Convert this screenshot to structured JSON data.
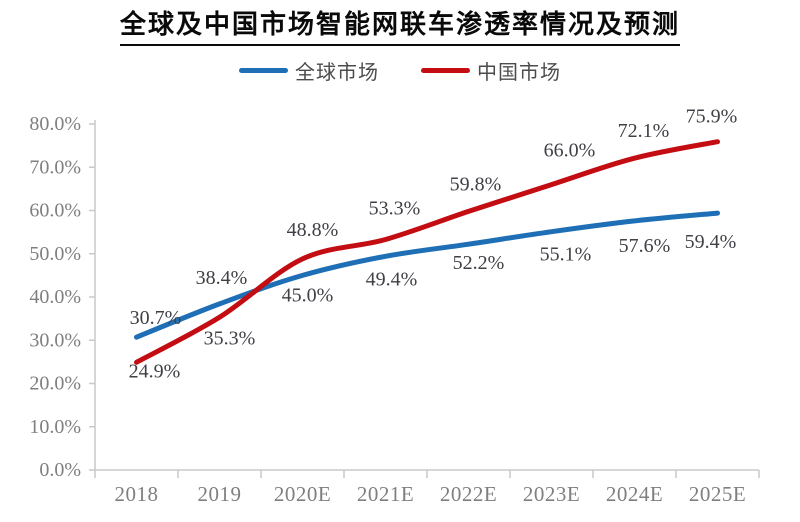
{
  "chart_data": {
    "type": "line",
    "title": "全球及中国市场智能网联车渗透率情况及预测",
    "categories": [
      "2018",
      "2019",
      "2020E",
      "2021E",
      "2022E",
      "2023E",
      "2024E",
      "2025E"
    ],
    "series": [
      {
        "name": "全球市场",
        "color": "#1E6FB5",
        "values": [
          30.7,
          38.4,
          45.0,
          49.4,
          52.2,
          55.1,
          57.6,
          59.4
        ],
        "labels": [
          "30.7%",
          "38.4%",
          "45.0%",
          "49.4%",
          "52.2%",
          "55.1%",
          "57.6%",
          "59.4%"
        ],
        "label_side": [
          "above",
          "above",
          "below",
          "below",
          "below",
          "below",
          "below",
          "below"
        ]
      },
      {
        "name": "中国市场",
        "color": "#C30D12",
        "values": [
          24.9,
          35.3,
          48.8,
          53.3,
          59.8,
          66.0,
          72.1,
          75.9
        ],
        "labels": [
          "24.9%",
          "35.3%",
          "48.8%",
          "53.3%",
          "59.8%",
          "66.0%",
          "72.1%",
          "75.9%"
        ],
        "label_side": [
          "below",
          "below",
          "above",
          "above",
          "above",
          "above",
          "above",
          "above"
        ]
      }
    ],
    "ylim": [
      0,
      80
    ],
    "y_tick_step": 10,
    "y_tick_labels": [
      "0.0%",
      "10.0%",
      "20.0%",
      "30.0%",
      "40.0%",
      "50.0%",
      "60.0%",
      "70.0%",
      "80.0%"
    ],
    "xlabel": "",
    "ylabel": "",
    "grid": false,
    "legend_position": "top-center",
    "colors": {
      "axis_line": "#c9c9c9",
      "axis_text": "#7f7f7f",
      "data_label_text": "#404047",
      "title_text": "#0a0a0a",
      "background": "#ffffff"
    }
  }
}
